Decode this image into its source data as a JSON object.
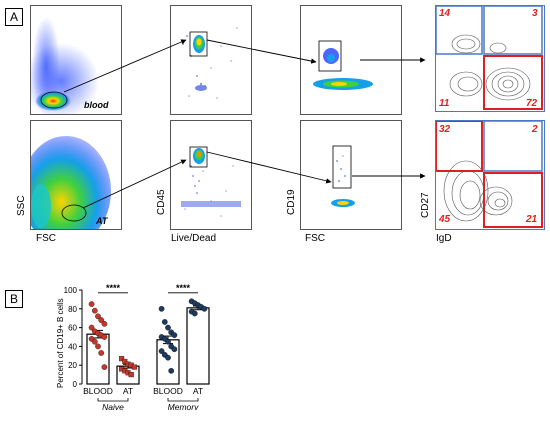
{
  "panel_a_label": "A",
  "panel_b_label": "B",
  "tags": {
    "blood": "blood",
    "at": "AT"
  },
  "axes": {
    "ssc": "SSC",
    "fsc1": "FSC",
    "cd45": "CD45",
    "live_dead": "Live/Dead",
    "cd19": "CD19",
    "fsc2": "FSC",
    "cd27": "CD27",
    "igd": "IgD"
  },
  "quadrants": {
    "blood": {
      "ul": "14",
      "ur": "3",
      "ll": "11",
      "lr": "72"
    },
    "at": {
      "ul": "32",
      "ur": "2",
      "ll": "45",
      "lr": "21"
    }
  },
  "colors": {
    "red": "#e02020",
    "blue": "#4a78c8",
    "blood_dot": "#c0392b",
    "at_dot": "#1f3b5c"
  },
  "chart_data": {
    "type": "bar",
    "ylabel": "Percent of CD19+ B cells",
    "ylim": [
      0,
      100
    ],
    "yticks": [
      "0",
      "20",
      "40",
      "60",
      "80",
      "100"
    ],
    "categories": [
      "BLOOD",
      "AT",
      "BLOOD",
      "AT"
    ],
    "groups": [
      "Naive",
      "Memory"
    ],
    "significance": [
      "****",
      "****"
    ],
    "series": [
      {
        "group": "Naive",
        "category": "BLOOD",
        "mean": 53,
        "sem": 4,
        "color": "blood",
        "points": [
          85,
          78,
          72,
          68,
          64,
          60,
          56,
          54,
          52,
          50,
          48,
          45,
          40,
          33,
          18
        ]
      },
      {
        "group": "Naive",
        "category": "AT",
        "mean": 19,
        "sem": 2,
        "color": "at",
        "points": [
          27,
          24,
          21,
          20,
          18,
          16,
          14,
          12,
          10
        ]
      },
      {
        "group": "Memory",
        "category": "BLOOD",
        "mean": 47,
        "sem": 4,
        "color": "at",
        "points": [
          80,
          66,
          60,
          55,
          52,
          50,
          48,
          45,
          40,
          37,
          35,
          31,
          28,
          14
        ]
      },
      {
        "group": "Memory",
        "category": "AT",
        "mean": 81,
        "sem": 2,
        "color": "at",
        "points": [
          88,
          86,
          84,
          82,
          80,
          77,
          75
        ]
      }
    ]
  }
}
